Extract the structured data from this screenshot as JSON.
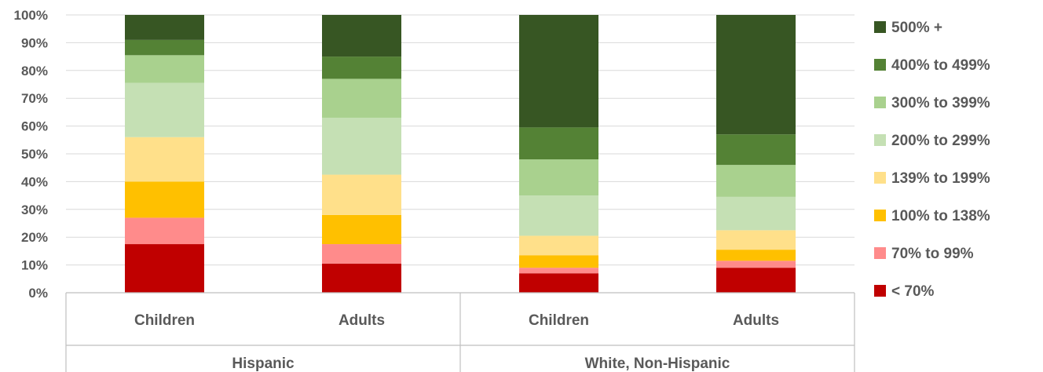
{
  "chart_data": {
    "type": "bar",
    "stacked": true,
    "normalized_percent": true,
    "title": "",
    "xlabel": "",
    "ylabel": "",
    "ylim": [
      0,
      100
    ],
    "yticks": [
      "0%",
      "10%",
      "20%",
      "30%",
      "40%",
      "50%",
      "60%",
      "70%",
      "80%",
      "90%",
      "100%"
    ],
    "grid": true,
    "legend_position": "right",
    "groups": [
      {
        "label": "Hispanic",
        "categories": [
          "Children",
          "Adults"
        ]
      },
      {
        "label": "White, Non-Hispanic",
        "categories": [
          "Children",
          "Adults"
        ]
      }
    ],
    "categories": [
      "Children",
      "Adults",
      "Children",
      "Adults"
    ],
    "series": [
      {
        "name": "< 70%",
        "color": "#c00000",
        "values": [
          17.5,
          10.5,
          7,
          9
        ]
      },
      {
        "name": "70% to 99%",
        "color": "#ff8b8b",
        "values": [
          9.5,
          7,
          2,
          2.5
        ]
      },
      {
        "name": "100% to 138%",
        "color": "#ffc000",
        "values": [
          13,
          10.5,
          4.5,
          4
        ]
      },
      {
        "name": "139% to 199%",
        "color": "#ffe08a",
        "values": [
          16,
          14.5,
          7,
          7
        ]
      },
      {
        "name": "200% to 299%",
        "color": "#c5e0b4",
        "values": [
          19.5,
          20.5,
          14.5,
          12
        ]
      },
      {
        "name": "300% to 399%",
        "color": "#a9d18e",
        "values": [
          10,
          14,
          13,
          11.5
        ]
      },
      {
        "name": "400% to 499%",
        "color": "#548235",
        "values": [
          5.5,
          8,
          11.5,
          11
        ]
      },
      {
        "name": "500% +",
        "color": "#375623",
        "values": [
          9,
          15,
          40.5,
          43
        ]
      }
    ]
  }
}
